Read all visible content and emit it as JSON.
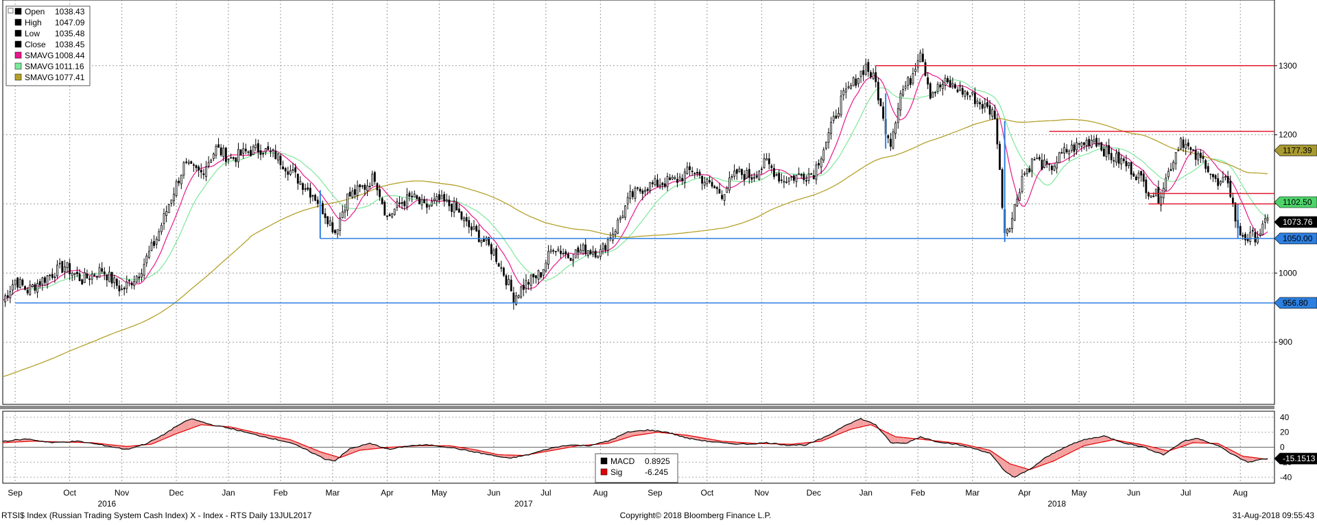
{
  "legend_top": [
    {
      "label": "Open",
      "value": "1038.43",
      "color": "#000000"
    },
    {
      "label": "High",
      "value": "1047.09",
      "color": "#000000"
    },
    {
      "label": "Low",
      "value": "1035.48",
      "color": "#000000"
    },
    {
      "label": "Close",
      "value": "1038.45",
      "color": "#000000"
    },
    {
      "label": "SMAVG",
      "value": "1008.44",
      "color": "#e8178a"
    },
    {
      "label": "SMAVG",
      "value": "1011.16",
      "color": "#7de89a"
    },
    {
      "label": "SMAVG",
      "value": "1077.41",
      "color": "#b5a02a"
    }
  ],
  "legend_bottom": [
    {
      "label": "MACD",
      "value": "0.8925",
      "color": "#000000"
    },
    {
      "label": "Sig",
      "value": "-6.245",
      "color": "#e00000"
    }
  ],
  "footer": {
    "left": "RTSI$ Index (Russian Trading System Cash Index) X - Index - RTS  Daily 13JUL2017",
    "center": "Copyright© 2018 Bloomberg Finance L.P.",
    "right": "31-Aug-2018 09:55:43"
  },
  "price_labels": [
    {
      "text": "1177.39",
      "value": 1177.39,
      "bg": "#a89a32",
      "fg": "#000000"
    },
    {
      "text": "1102.50",
      "value": 1102.5,
      "bg": "#4dd36a",
      "fg": "#000000"
    },
    {
      "text": "1073.76",
      "value": 1073.76,
      "bg": "#000000",
      "fg": "#ffffff"
    },
    {
      "text": "1050.00",
      "value": 1050.0,
      "bg": "#2d7fe0",
      "fg": "#000000"
    },
    {
      "text": "956.80",
      "value": 956.8,
      "bg": "#2d7fe0",
      "fg": "#000000"
    }
  ],
  "macd_label": {
    "text": "-15.1513",
    "value": -15.1513,
    "bg": "#000000",
    "fg": "#ffffff"
  },
  "chart_data": {
    "type": "line",
    "title": "",
    "y_ticks": [
      900,
      1000,
      1100,
      1200,
      1300
    ],
    "ylim": [
      810,
      1395
    ],
    "macd_ticks": [
      -40,
      -20,
      0,
      20,
      40
    ],
    "macd_ylim": [
      -48,
      48
    ],
    "months": [
      {
        "label": "Sep",
        "idx": 5
      },
      {
        "label": "Oct",
        "idx": 27
      },
      {
        "label": "Nov",
        "idx": 48
      },
      {
        "label": "Dec",
        "idx": 70
      },
      {
        "label": "Jan",
        "idx": 91
      },
      {
        "label": "Feb",
        "idx": 112
      },
      {
        "label": "Mar",
        "idx": 133
      },
      {
        "label": "Apr",
        "idx": 155
      },
      {
        "label": "May",
        "idx": 176
      },
      {
        "label": "Jun",
        "idx": 198
      },
      {
        "label": "Jul",
        "idx": 219
      },
      {
        "label": "Aug",
        "idx": 241
      },
      {
        "label": "Sep",
        "idx": 263
      },
      {
        "label": "Oct",
        "idx": 284
      },
      {
        "label": "Nov",
        "idx": 306
      },
      {
        "label": "Dec",
        "idx": 327
      },
      {
        "label": "Jan",
        "idx": 348
      },
      {
        "label": "Feb",
        "idx": 369
      },
      {
        "label": "Mar",
        "idx": 391
      },
      {
        "label": "Apr",
        "idx": 412
      },
      {
        "label": "May",
        "idx": 434
      },
      {
        "label": "Jun",
        "idx": 456
      },
      {
        "label": "Jul",
        "idx": 477
      },
      {
        "label": "Aug",
        "idx": 499
      }
    ],
    "years": [
      {
        "label": "2016",
        "idx": 42
      },
      {
        "label": "2017",
        "idx": 210
      },
      {
        "label": "2018",
        "idx": 425
      }
    ],
    "x_range": [
      0,
      510
    ],
    "close_anchors": [
      [
        0,
        960
      ],
      [
        5,
        990
      ],
      [
        10,
        975
      ],
      [
        18,
        995
      ],
      [
        25,
        1010
      ],
      [
        32,
        990
      ],
      [
        40,
        1005
      ],
      [
        48,
        975
      ],
      [
        55,
        1000
      ],
      [
        62,
        1050
      ],
      [
        68,
        1110
      ],
      [
        73,
        1155
      ],
      [
        80,
        1145
      ],
      [
        86,
        1180
      ],
      [
        92,
        1165
      ],
      [
        98,
        1175
      ],
      [
        104,
        1180
      ],
      [
        110,
        1170
      ],
      [
        118,
        1140
      ],
      [
        126,
        1110
      ],
      [
        131,
        1080
      ],
      [
        134,
        1060
      ],
      [
        139,
        1110
      ],
      [
        146,
        1125
      ],
      [
        150,
        1140
      ],
      [
        155,
        1080
      ],
      [
        160,
        1100
      ],
      [
        165,
        1110
      ],
      [
        170,
        1095
      ],
      [
        176,
        1105
      ],
      [
        182,
        1095
      ],
      [
        187,
        1070
      ],
      [
        193,
        1050
      ],
      [
        198,
        1030
      ],
      [
        202,
        1000
      ],
      [
        206,
        965
      ],
      [
        211,
        985
      ],
      [
        217,
        1000
      ],
      [
        222,
        1040
      ],
      [
        228,
        1025
      ],
      [
        235,
        1035
      ],
      [
        241,
        1030
      ],
      [
        247,
        1065
      ],
      [
        253,
        1110
      ],
      [
        259,
        1125
      ],
      [
        265,
        1130
      ],
      [
        272,
        1135
      ],
      [
        278,
        1150
      ],
      [
        284,
        1130
      ],
      [
        290,
        1115
      ],
      [
        296,
        1145
      ],
      [
        302,
        1140
      ],
      [
        308,
        1160
      ],
      [
        314,
        1135
      ],
      [
        320,
        1140
      ],
      [
        327,
        1145
      ],
      [
        333,
        1200
      ],
      [
        338,
        1250
      ],
      [
        343,
        1275
      ],
      [
        348,
        1300
      ],
      [
        352,
        1275
      ],
      [
        355,
        1220
      ],
      [
        358,
        1190
      ],
      [
        362,
        1260
      ],
      [
        366,
        1280
      ],
      [
        370,
        1325
      ],
      [
        374,
        1260
      ],
      [
        380,
        1275
      ],
      [
        386,
        1265
      ],
      [
        391,
        1255
      ],
      [
        396,
        1240
      ],
      [
        400,
        1230
      ],
      [
        404,
        1060
      ],
      [
        407,
        1080
      ],
      [
        411,
        1140
      ],
      [
        416,
        1165
      ],
      [
        422,
        1150
      ],
      [
        428,
        1175
      ],
      [
        434,
        1185
      ],
      [
        440,
        1195
      ],
      [
        446,
        1170
      ],
      [
        452,
        1160
      ],
      [
        458,
        1140
      ],
      [
        462,
        1120
      ],
      [
        466,
        1110
      ],
      [
        470,
        1145
      ],
      [
        475,
        1195
      ],
      [
        480,
        1170
      ],
      [
        485,
        1160
      ],
      [
        490,
        1125
      ],
      [
        494,
        1135
      ],
      [
        498,
        1060
      ],
      [
        502,
        1050
      ],
      [
        506,
        1055
      ],
      [
        510,
        1075
      ]
    ],
    "macd_anchors": [
      [
        0,
        8
      ],
      [
        10,
        11
      ],
      [
        20,
        6
      ],
      [
        30,
        8
      ],
      [
        40,
        3
      ],
      [
        50,
        -3
      ],
      [
        58,
        5
      ],
      [
        64,
        15
      ],
      [
        70,
        28
      ],
      [
        76,
        38
      ],
      [
        84,
        30
      ],
      [
        92,
        25
      ],
      [
        100,
        18
      ],
      [
        108,
        12
      ],
      [
        116,
        6
      ],
      [
        124,
        -6
      ],
      [
        130,
        -16
      ],
      [
        134,
        -18
      ],
      [
        140,
        -2
      ],
      [
        148,
        5
      ],
      [
        156,
        -3
      ],
      [
        164,
        2
      ],
      [
        172,
        3
      ],
      [
        180,
        0
      ],
      [
        188,
        -5
      ],
      [
        196,
        -10
      ],
      [
        204,
        -15
      ],
      [
        212,
        -10
      ],
      [
        220,
        -2
      ],
      [
        228,
        3
      ],
      [
        236,
        2
      ],
      [
        244,
        8
      ],
      [
        252,
        20
      ],
      [
        260,
        23
      ],
      [
        268,
        20
      ],
      [
        276,
        12
      ],
      [
        284,
        8
      ],
      [
        292,
        5
      ],
      [
        300,
        4
      ],
      [
        308,
        6
      ],
      [
        316,
        3
      ],
      [
        324,
        3
      ],
      [
        332,
        14
      ],
      [
        340,
        30
      ],
      [
        346,
        38
      ],
      [
        352,
        30
      ],
      [
        358,
        6
      ],
      [
        364,
        5
      ],
      [
        370,
        14
      ],
      [
        376,
        8
      ],
      [
        384,
        4
      ],
      [
        392,
        -2
      ],
      [
        398,
        -8
      ],
      [
        404,
        -32
      ],
      [
        408,
        -40
      ],
      [
        414,
        -30
      ],
      [
        420,
        -15
      ],
      [
        428,
        0
      ],
      [
        436,
        10
      ],
      [
        444,
        15
      ],
      [
        452,
        6
      ],
      [
        460,
        0
      ],
      [
        468,
        -10
      ],
      [
        476,
        8
      ],
      [
        482,
        12
      ],
      [
        490,
        2
      ],
      [
        496,
        -10
      ],
      [
        502,
        -20
      ],
      [
        508,
        -16
      ],
      [
        512,
        -14
      ]
    ],
    "sig_anchors": [
      [
        0,
        6
      ],
      [
        12,
        8
      ],
      [
        24,
        7
      ],
      [
        36,
        6
      ],
      [
        50,
        1
      ],
      [
        60,
        4
      ],
      [
        70,
        18
      ],
      [
        80,
        30
      ],
      [
        92,
        27
      ],
      [
        104,
        18
      ],
      [
        116,
        10
      ],
      [
        128,
        -6
      ],
      [
        136,
        -14
      ],
      [
        144,
        -4
      ],
      [
        156,
        0
      ],
      [
        168,
        2
      ],
      [
        180,
        2
      ],
      [
        190,
        -3
      ],
      [
        200,
        -10
      ],
      [
        210,
        -11
      ],
      [
        222,
        -4
      ],
      [
        232,
        2
      ],
      [
        244,
        5
      ],
      [
        254,
        15
      ],
      [
        264,
        20
      ],
      [
        276,
        16
      ],
      [
        290,
        8
      ],
      [
        304,
        5
      ],
      [
        318,
        4
      ],
      [
        330,
        8
      ],
      [
        342,
        24
      ],
      [
        350,
        30
      ],
      [
        360,
        14
      ],
      [
        372,
        10
      ],
      [
        386,
        5
      ],
      [
        398,
        -4
      ],
      [
        406,
        -22
      ],
      [
        414,
        -30
      ],
      [
        424,
        -18
      ],
      [
        436,
        2
      ],
      [
        448,
        10
      ],
      [
        460,
        3
      ],
      [
        470,
        -5
      ],
      [
        480,
        6
      ],
      [
        490,
        5
      ],
      [
        500,
        -12
      ],
      [
        512,
        -17
      ]
    ],
    "hlines": [
      {
        "value": 1300,
        "from": 352,
        "color": "#e0192e"
      },
      {
        "value": 1205,
        "from": 422,
        "color": "#e0192e"
      },
      {
        "value": 1115,
        "from": 462,
        "color": "#e0192e"
      },
      {
        "value": 1100,
        "from": 462,
        "color": "#e0192e"
      },
      {
        "value": 1050,
        "from": 128,
        "color": "#2d7fe0"
      },
      {
        "value": 956.8,
        "from": 5,
        "color": "#2d7fe0"
      }
    ],
    "series_colors": {
      "candles": "#000000",
      "sma_short": "#e8178a",
      "sma_mid": "#7de89a",
      "sma_long": "#b5a02a",
      "macd": "#000000",
      "sig": "#e00000",
      "fill": "#f4a0a0"
    }
  }
}
